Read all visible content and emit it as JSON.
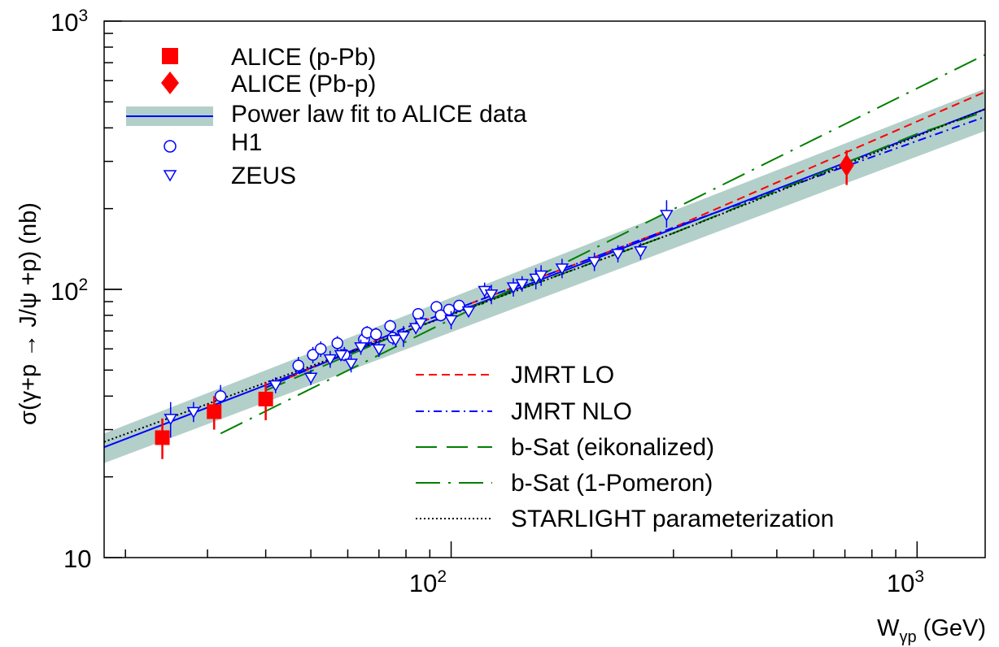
{
  "chart_data": {
    "type": "scatter",
    "scale": {
      "x": "log",
      "y": "log"
    },
    "xlim": [
      18,
      1400
    ],
    "ylim": [
      10,
      1000
    ],
    "xlabel": {
      "main": "W",
      "sub": "γp",
      "unit": "(GeV)"
    },
    "ylabel": "σ(γ+p → J/ψ +p) (nb)",
    "x_ticks": [
      {
        "value": 100,
        "base": "10",
        "exp": "2"
      },
      {
        "value": 1000,
        "base": "10",
        "exp": "3"
      }
    ],
    "y_ticks": [
      {
        "value": 10,
        "base": "10",
        "exp": ""
      },
      {
        "value": 100,
        "base": "10",
        "exp": "2"
      },
      {
        "value": 1000,
        "base": "10",
        "exp": "3"
      }
    ],
    "legend_top": [
      {
        "label": "ALICE (p-Pb)",
        "marker": "square",
        "color": "#ff0000"
      },
      {
        "label": "ALICE (Pb-p)",
        "marker": "diamond",
        "color": "#ff0000"
      },
      {
        "label": "Power law fit to ALICE data",
        "marker": "band-line",
        "color": "#0000ff",
        "band_color": "#b3cfc9"
      },
      {
        "label": "H1",
        "marker": "circle",
        "color": "#0000ff"
      },
      {
        "label": "ZEUS",
        "marker": "triangle-down",
        "color": "#0000ff"
      }
    ],
    "legend_bottom": [
      {
        "label": "JMRT LO",
        "style": "dashed",
        "color": "#ff0000"
      },
      {
        "label": "JMRT NLO",
        "style": "dashdot",
        "color": "#0000ff"
      },
      {
        "label": "b-Sat (eikonalized)",
        "style": "longdash",
        "color": "#008000"
      },
      {
        "label": "b-Sat (1-Pomeron)",
        "style": "longdashdot",
        "color": "#008000"
      },
      {
        "label": "STARLIGHT parameterization",
        "style": "dotted",
        "color": "#000000"
      }
    ],
    "series": [
      {
        "name": "ALICE (p-Pb)",
        "type": "scatter",
        "marker": "square",
        "color": "#ff0000",
        "points": [
          [
            24.0,
            28.0,
            23.3,
            33.0
          ],
          [
            31.0,
            35.0,
            30.0,
            40.0
          ],
          [
            40.0,
            39.0,
            32.5,
            45.0
          ]
        ]
      },
      {
        "name": "ALICE (Pb-p)",
        "type": "scatter",
        "marker": "diamond",
        "color": "#ff0000",
        "points": [
          [
            706,
            290,
            245,
            330
          ]
        ]
      },
      {
        "name": "H1",
        "type": "scatter",
        "marker": "circle",
        "color": "#0000ff",
        "points": [
          [
            32,
            40,
            37,
            44
          ],
          [
            47,
            52,
            49,
            56
          ],
          [
            50.5,
            57,
            53,
            61
          ],
          [
            52.5,
            60,
            56,
            64
          ],
          [
            57,
            63,
            59,
            67
          ],
          [
            59,
            57,
            54,
            61
          ],
          [
            65,
            65,
            61,
            69
          ],
          [
            66,
            69,
            65,
            73
          ],
          [
            69,
            68,
            64,
            72
          ],
          [
            74,
            73,
            69,
            77
          ],
          [
            75,
            66,
            62,
            70
          ],
          [
            85,
            81,
            77,
            85
          ],
          [
            93,
            86,
            82,
            90
          ],
          [
            95,
            80,
            76,
            84
          ],
          [
            99,
            84,
            80,
            88
          ],
          [
            104,
            87,
            83,
            91
          ]
        ]
      },
      {
        "name": "ZEUS",
        "type": "scatter",
        "marker": "triangle-down",
        "color": "#0000ff",
        "points": [
          [
            25,
            33,
            28,
            38
          ],
          [
            28,
            35,
            32,
            38
          ],
          [
            42,
            44,
            41,
            47
          ],
          [
            50,
            47,
            44,
            50
          ],
          [
            55,
            55,
            51,
            59
          ],
          [
            58,
            57,
            54,
            60
          ],
          [
            61,
            53,
            49,
            57
          ],
          [
            64,
            61,
            57,
            65
          ],
          [
            70,
            60,
            56,
            64
          ],
          [
            76,
            65,
            61,
            69
          ],
          [
            79,
            67,
            61,
            73
          ],
          [
            84,
            72,
            68,
            76
          ],
          [
            86,
            75,
            71,
            79
          ],
          [
            100,
            77,
            71,
            83
          ],
          [
            109,
            83,
            79,
            87
          ],
          [
            118,
            99,
            92,
            106
          ],
          [
            122,
            96,
            88,
            104
          ],
          [
            136,
            102,
            94,
            110
          ],
          [
            142,
            105,
            98,
            112
          ],
          [
            152,
            110,
            100,
            120
          ],
          [
            156,
            113,
            103,
            123
          ],
          [
            173,
            120,
            110,
            130
          ],
          [
            203,
            127,
            117,
            137
          ],
          [
            228,
            136,
            126,
            146
          ],
          [
            255,
            139,
            129,
            149
          ],
          [
            290,
            190,
            170,
            215
          ]
        ]
      },
      {
        "name": "Power law fit to ALICE data",
        "type": "band",
        "color": "#0000ff",
        "band_color": "#b3cfc9",
        "x": [
          18,
          1400
        ],
        "y": [
          25.8,
          470
        ],
        "y_low": [
          22.5,
          390
        ],
        "y_high": [
          29.0,
          560
        ]
      },
      {
        "name": "JMRT LO",
        "type": "line",
        "style": "dashed",
        "color": "#ff0000",
        "x": [
          40,
          80,
          300,
          1400
        ],
        "y": [
          43,
          72,
          170,
          545
        ]
      },
      {
        "name": "JMRT NLO",
        "type": "line",
        "style": "dashdot",
        "color": "#0000ff",
        "x": [
          40,
          80,
          300,
          1400
        ],
        "y": [
          43,
          72,
          170,
          440
        ]
      },
      {
        "name": "b-Sat (eikonalized)",
        "type": "line",
        "style": "longdash",
        "color": "#008000",
        "x": [
          40,
          80,
          300,
          1000,
          1400
        ],
        "y": [
          42,
          70,
          162,
          380,
          460
        ]
      },
      {
        "name": "b-Sat (1-Pomeron)",
        "type": "line",
        "style": "longdashdot",
        "color": "#008000",
        "x": [
          32,
          1400
        ],
        "y": [
          29,
          750
        ]
      },
      {
        "name": "STARLIGHT parameterization",
        "type": "line",
        "style": "dotted",
        "color": "#000000",
        "x": [
          18,
          300,
          1400
        ],
        "y": [
          27,
          162,
          470
        ]
      }
    ]
  }
}
